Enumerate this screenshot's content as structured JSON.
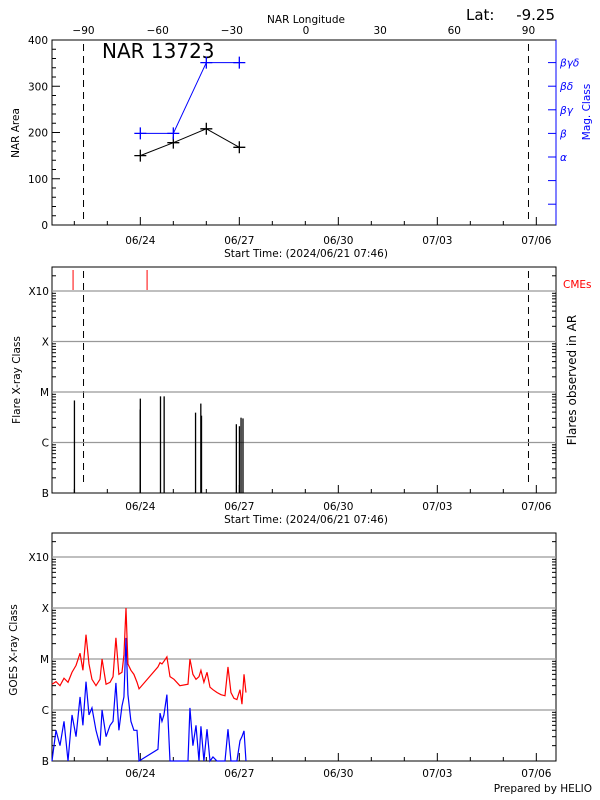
{
  "header": {
    "lat_label": "Lat:",
    "lat_value": "-9.25",
    "top_axis_title": "NAR Longitude"
  },
  "footer": {
    "prepared_by": "Prepared by HELIO"
  },
  "colors": {
    "area": "#000000",
    "mag_class": "#0000ff",
    "cme": "#ff0000",
    "goes_long": "#ff0000",
    "goes_short": "#0000ff",
    "grid": "#999999"
  },
  "chart_data": [
    {
      "type": "line",
      "title": "NAR 13723",
      "xlabel": "Start Time: (2024/06/21 07:46)",
      "ylabel": "NAR Area",
      "y2label": "Mag. Class",
      "top_xlabel": "NAR Longitude",
      "xlim": [
        "2024-06-21T07:46",
        "2024-07-06T14:13"
      ],
      "ylim": [
        0,
        400
      ],
      "yticks": [
        0,
        100,
        200,
        300,
        400
      ],
      "xtick_labels": [
        "06/24",
        "06/27",
        "06/30",
        "07/03",
        "07/06"
      ],
      "xtick_dates": [
        "2024-06-24",
        "2024-06-27",
        "2024-06-30",
        "2024-07-03",
        "2024-07-06"
      ],
      "longitude_ticks": [
        -90,
        -60,
        -30,
        0,
        30,
        60,
        90
      ],
      "limb_longitudes": [
        -90,
        90
      ],
      "mag_classes": [
        "α",
        "β",
        "βγ",
        "βδ",
        "βγδ"
      ],
      "x": [
        "2024-06-24T00:00",
        "2024-06-25T00:00",
        "2024-06-26T00:00",
        "2024-06-27T00:00"
      ],
      "series": [
        {
          "name": "NAR Area",
          "values": [
            150,
            178,
            208,
            168
          ]
        },
        {
          "name": "Mag. Class",
          "values": [
            "β",
            "β",
            "βγδ",
            "βγδ"
          ]
        }
      ]
    },
    {
      "type": "bar",
      "xlabel": "Start Time: (2024/06/21 07:46)",
      "ylabel": "Flare X-ray Class",
      "y2label": "Flares observed in AR",
      "cme_label": "CMEs",
      "yticks": [
        "B",
        "C",
        "M",
        "X",
        "X10"
      ],
      "xtick_labels": [
        "06/24",
        "06/27",
        "06/30",
        "07/03",
        "07/06"
      ],
      "grid": true,
      "flares": [
        {
          "time": "2024-06-22T00:05",
          "class": "C6.8"
        },
        {
          "time": "2024-06-23T23:55",
          "class": "C4.5"
        },
        {
          "time": "2024-06-24T00:00",
          "class": "C7.4"
        },
        {
          "time": "2024-06-24T14:40",
          "class": "C8.2"
        },
        {
          "time": "2024-06-24T17:20",
          "class": "C8.2"
        },
        {
          "time": "2024-06-25T16:10",
          "class": "C3.9"
        },
        {
          "time": "2024-06-25T20:00",
          "class": "C5.9"
        },
        {
          "time": "2024-06-25T20:30",
          "class": "C3.4"
        },
        {
          "time": "2024-06-26T21:50",
          "class": "C2.3"
        },
        {
          "time": "2024-06-27T00:05",
          "class": "C2.1"
        },
        {
          "time": "2024-06-27T01:15",
          "class": "C3.1"
        },
        {
          "time": "2024-06-27T02:40",
          "class": "C3.0"
        }
      ],
      "cmes": [
        "2024-06-21T23:05",
        "2024-06-24T04:55"
      ]
    },
    {
      "type": "line",
      "ylabel": "GOES X-ray Class",
      "yticks": [
        "B",
        "C",
        "M",
        "X",
        "X10"
      ],
      "xtick_labels": [
        "06/24",
        "06/27",
        "06/30",
        "07/03",
        "07/06"
      ],
      "grid": true,
      "y_scale": "log",
      "x": [
        "2024-06-21T07:46",
        "2024-06-21T10:40",
        "2024-06-21T13:35",
        "2024-06-21T16:30",
        "2024-06-21T19:25",
        "2024-06-21T22:20",
        "2024-06-22T01:15",
        "2024-06-22T04:10",
        "2024-06-22T06:15",
        "2024-06-22T08:30",
        "2024-06-22T10:40",
        "2024-06-22T12:50",
        "2024-06-22T15:45",
        "2024-06-22T18:40",
        "2024-06-22T20:10",
        "2024-06-22T23:05",
        "2024-06-23T02:00",
        "2024-06-23T04:10",
        "2024-06-23T06:15",
        "2024-06-23T08:25",
        "2024-06-23T10:40",
        "2024-06-23T12:05",
        "2024-06-23T13:35",
        "2024-06-23T15:00",
        "2024-06-23T17:10",
        "2024-06-23T19:20",
        "2024-06-23T21:35",
        "2024-06-23T23:05",
        "2024-06-24T12:50",
        "2024-06-24T14:20",
        "2024-06-24T15:45",
        "2024-06-24T17:10",
        "2024-06-24T19:20",
        "2024-06-24T21:35",
        "2024-06-25T00:30",
        "2024-06-25T04:45",
        "2024-06-25T10:40",
        "2024-06-25T12:05",
        "2024-06-25T14:15",
        "2024-06-25T16:30",
        "2024-06-25T18:40",
        "2024-06-25T20:05",
        "2024-06-25T22:15",
        "2024-06-26T00:30",
        "2024-06-26T02:40",
        "2024-06-26T04:50",
        "2024-06-26T07:45",
        "2024-06-26T10:40",
        "2024-06-26T13:35",
        "2024-06-26T15:45",
        "2024-06-26T17:55",
        "2024-06-26T20:05",
        "2024-06-26T22:15",
        "2024-06-27T00:30",
        "2024-06-27T01:55",
        "2024-06-27T03:25",
        "2024-06-27T04:50"
      ],
      "series": [
        {
          "name": "long",
          "values": [
            3.2e-06,
            3.6e-06,
            3e-06,
            4.2e-06,
            3.5e-06,
            5.5e-06,
            7.5e-06,
            1.3e-05,
            6e-06,
            3e-05,
            8e-06,
            4e-06,
            3e-06,
            4e-06,
            1e-05,
            3.2e-06,
            3.5e-06,
            4.5e-06,
            2.6e-05,
            5e-06,
            5.5e-06,
            1.2e-05,
            0.0001,
            8e-06,
            6e-06,
            5e-06,
            3.5e-06,
            2.6e-06,
            7e-06,
            8.5e-06,
            8e-06,
            9e-06,
            1.1e-05,
            4.5e-06,
            4e-06,
            3e-06,
            3.2e-06,
            1e-05,
            5e-06,
            4e-06,
            4.5e-06,
            6e-06,
            3.5e-06,
            5.5e-06,
            2.8e-06,
            2.5e-06,
            2.2e-06,
            2e-06,
            1.9e-06,
            7e-06,
            2.2e-06,
            1.7e-06,
            1.6e-06,
            2.5e-06,
            1.3e-06,
            5e-06,
            2.2e-06
          ]
        },
        {
          "name": "short",
          "values": [
            1e-07,
            4e-07,
            2e-07,
            6e-07,
            1e-07,
            8e-07,
            3e-07,
            1.8e-06,
            5e-07,
            3.6e-06,
            8e-07,
            1.1e-06,
            4e-07,
            2e-07,
            1e-06,
            3e-07,
            5e-07,
            6e-07,
            3.4e-06,
            4e-07,
            1.2e-06,
            1.8e-06,
            2.6e-05,
            2e-06,
            6e-07,
            4e-07,
            4e-07,
            1e-07,
            1.7e-07,
            8.7e-07,
            6e-07,
            8e-07,
            2e-06,
            1e-07,
            1e-07,
            1e-07,
            1e-07,
            1.1e-06,
            2e-07,
            5e-07,
            1e-07,
            4.8e-07,
            1e-07,
            4.2e-07,
            1e-07,
            1.2e-07,
            1e-07,
            1e-07,
            1e-07,
            4.2e-07,
            1e-07,
            1e-07,
            1e-07,
            2.5e-07,
            3e-07,
            3.9e-07,
            1e-07
          ]
        }
      ]
    }
  ]
}
